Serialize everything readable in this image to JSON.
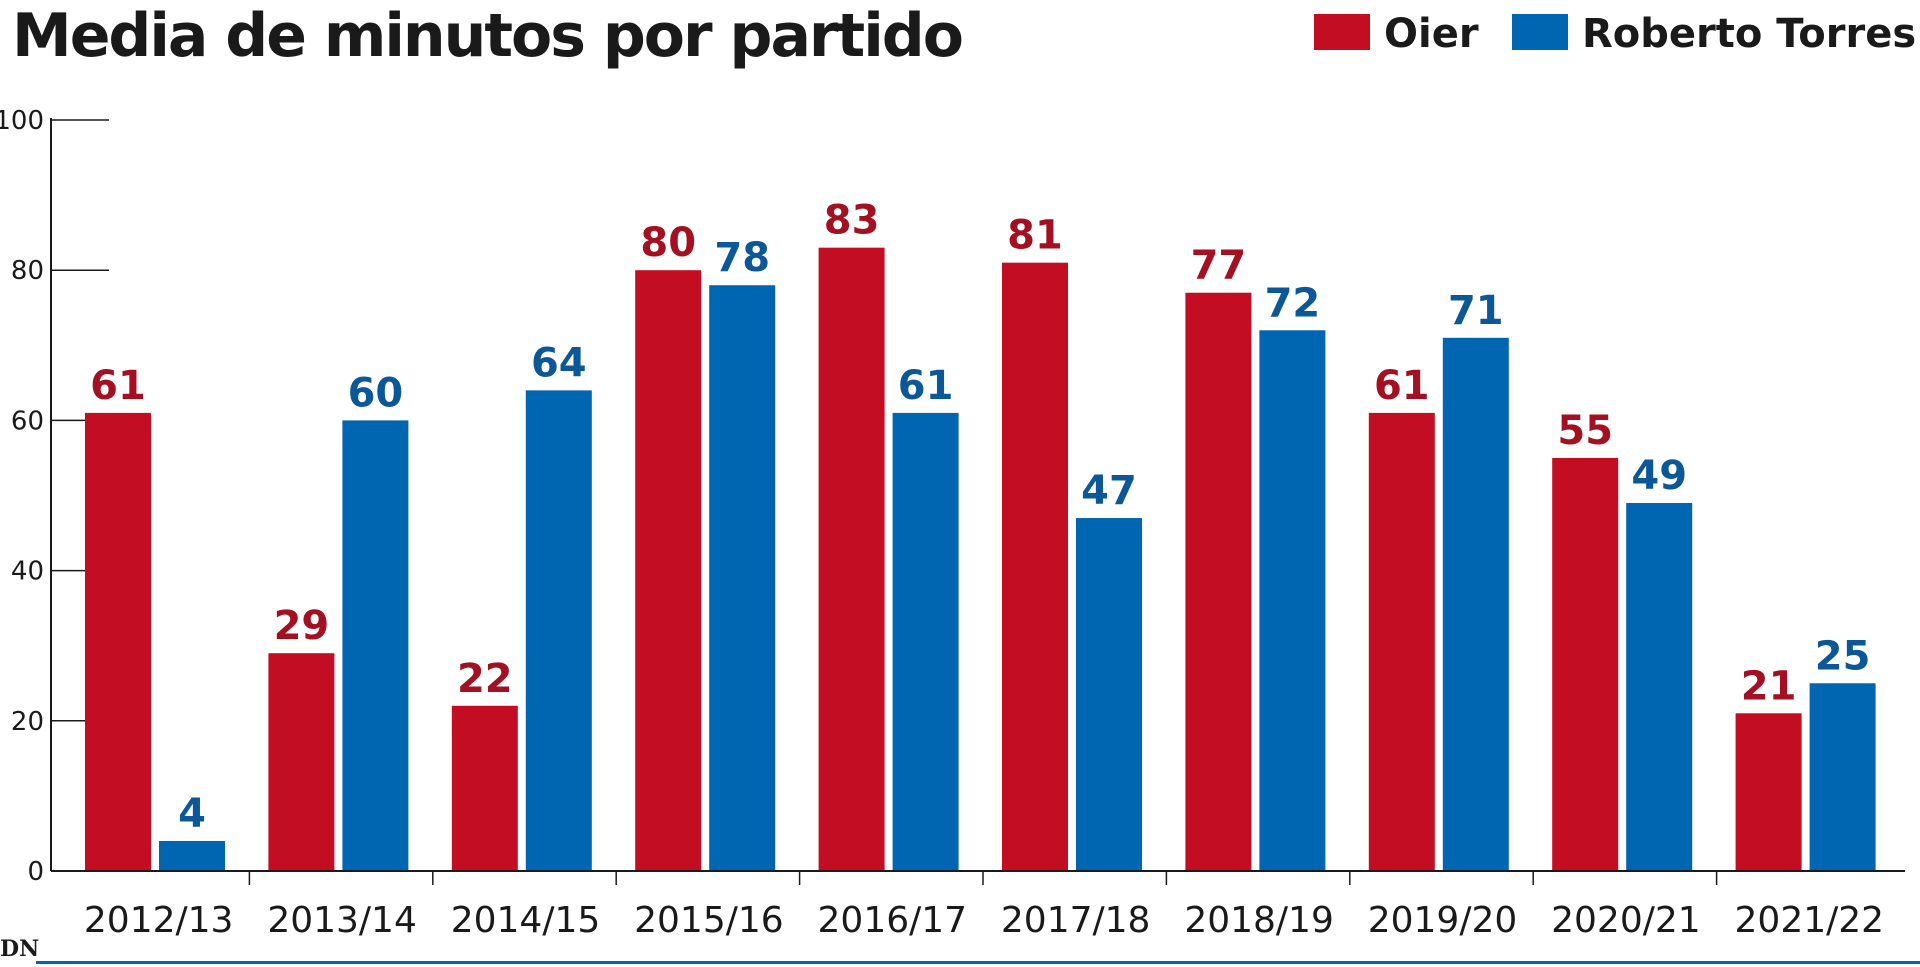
{
  "chart_data": {
    "type": "bar",
    "title": "Media de minutos por partido",
    "categories": [
      "2012/13",
      "2013/14",
      "2014/15",
      "2015/16",
      "2016/17",
      "2017/18",
      "2018/19",
      "2019/20",
      "2020/21",
      "2021/22"
    ],
    "series": [
      {
        "name": "Oier",
        "color": "#c30d23",
        "label_color": "#a31022",
        "values": [
          61,
          29,
          22,
          80,
          83,
          81,
          77,
          61,
          55,
          21
        ]
      },
      {
        "name": "Roberto Torres",
        "color": "#0066b1",
        "label_color": "#0b5797",
        "values": [
          4,
          60,
          64,
          78,
          61,
          47,
          72,
          71,
          49,
          25
        ]
      }
    ],
    "yticks": [
      0,
      20,
      40,
      60,
      80,
      100
    ],
    "ylim": [
      0,
      100
    ],
    "xlabel": "",
    "ylabel": "",
    "grid": false,
    "legend_position": "top-right"
  },
  "branding": {
    "logo_text": "DN",
    "accent_color": "#0066b1"
  }
}
